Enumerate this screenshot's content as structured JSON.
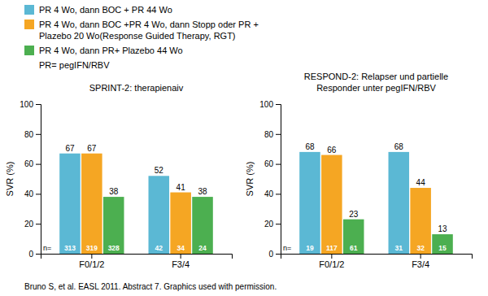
{
  "chart_data": [
    {
      "type": "bar",
      "title": "SPRINT-2: therapienaiv",
      "ylabel": "SVR (%)",
      "categories": [
        "F0/1/2",
        "F3/4"
      ],
      "series": [
        {
          "name": "PR 4 Wo, dann BOC + PR 44 Wo",
          "color": "#5BB8D4",
          "values": [
            67,
            52
          ],
          "n": [
            313,
            42
          ]
        },
        {
          "name": "PR 4 Wo, dann BOC +PR 4 Wo, dann Stopp oder PR +\nPlazebo 20 Wo(Response Guided Therapy, RGT)",
          "color": "#F5A623",
          "values": [
            67,
            41
          ],
          "n": [
            319,
            34
          ]
        },
        {
          "name": "PR 4 Wo, dann  PR+ Plazebo 44 Wo",
          "color": "#4CAF50",
          "values": [
            38,
            38
          ],
          "n": [
            328,
            24
          ]
        }
      ],
      "ylim": [
        0,
        100
      ],
      "yticks": [
        0,
        20,
        40,
        60,
        80,
        100
      ],
      "annotations": [
        "n="
      ],
      "data_labels": true,
      "grid": false,
      "legend": "top"
    },
    {
      "type": "bar",
      "title": "RESPOND-2: Relapser und partielle\nResponder unter  pegIFN/RBV",
      "ylabel": "SVR (%)",
      "categories": [
        "F0/1/2",
        "F3/4"
      ],
      "series": [
        {
          "color": "#5BB8D4",
          "values": [
            68,
            68
          ],
          "n": [
            19,
            31
          ]
        },
        {
          "color": "#F5A623",
          "values": [
            66,
            44
          ],
          "n": [
            117,
            32
          ]
        },
        {
          "color": "#4CAF50",
          "values": [
            23,
            13
          ],
          "n": [
            61,
            15
          ]
        }
      ],
      "ylim": [
        0,
        100
      ],
      "yticks": [
        0,
        20,
        40,
        60,
        80,
        100
      ],
      "annotations": [
        "n="
      ],
      "data_labels": true,
      "grid": false
    }
  ],
  "annotations": [
    "PR= pegIFN/RBV",
    "Bruno S, et al. EASL 2011. Abstract 7. Graphics used with permission."
  ]
}
